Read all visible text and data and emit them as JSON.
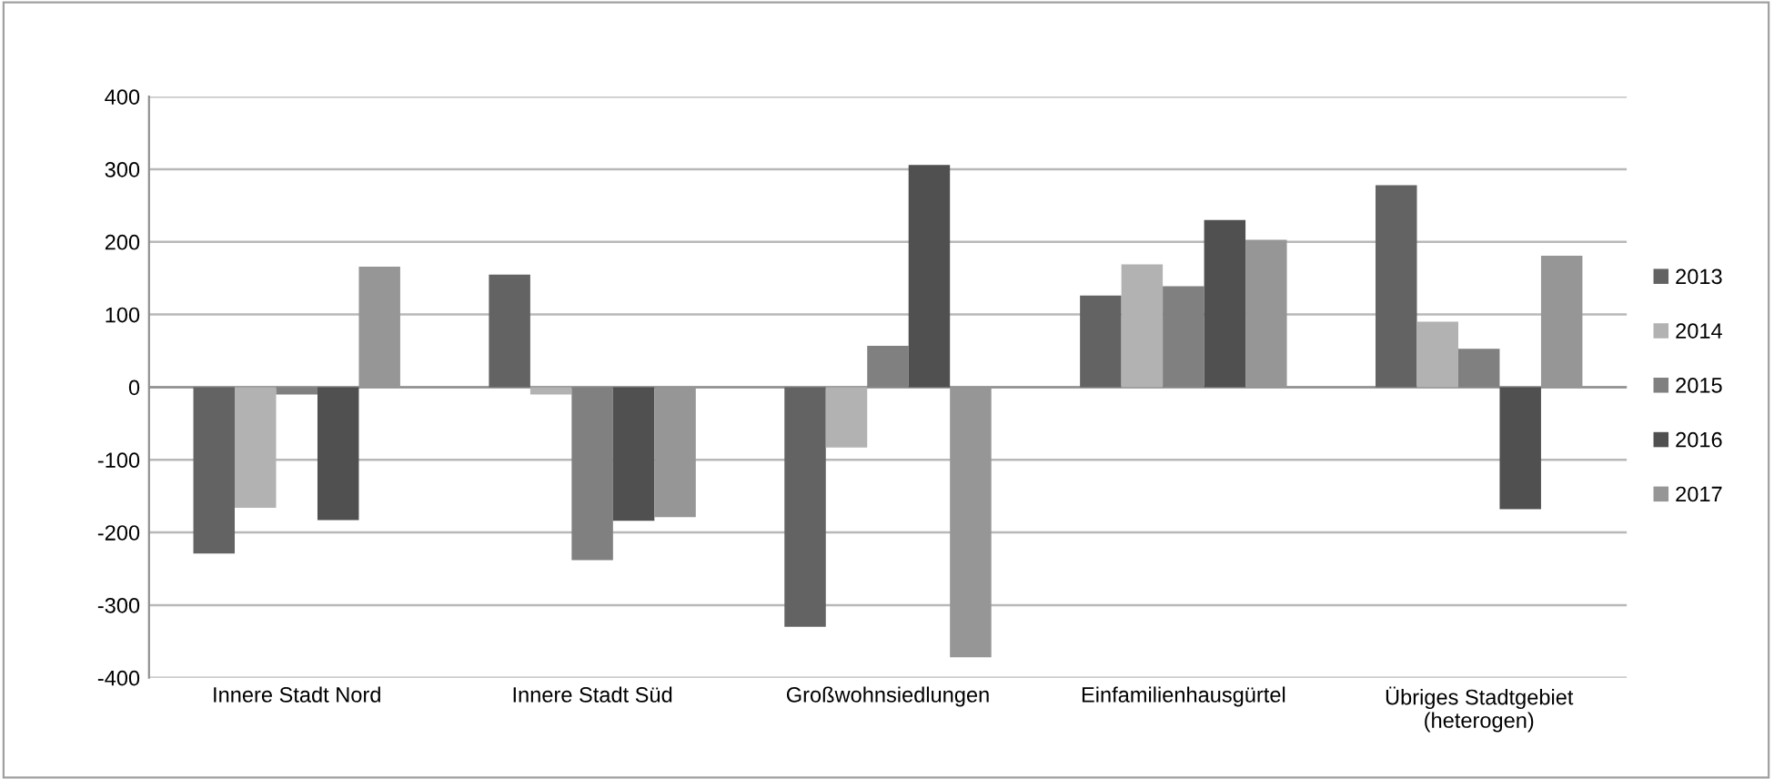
{
  "chart_data": {
    "type": "bar",
    "categories": [
      "Innere Stadt Nord",
      "Innere Stadt Süd",
      "Großwohnsiedlungen",
      "Einfamilienhausgürtel",
      "Übriges Stadtgebiet\n(heterogen)"
    ],
    "series": [
      {
        "name": "2013",
        "color": "#636363",
        "values": [
          -229,
          155,
          -330,
          126,
          278
        ]
      },
      {
        "name": "2014",
        "color": "#b2b2b2",
        "values": [
          -166,
          -10,
          -83,
          169,
          90
        ]
      },
      {
        "name": "2015",
        "color": "#808080",
        "values": [
          -10,
          -238,
          57,
          139,
          53
        ]
      },
      {
        "name": "2016",
        "color": "#505050",
        "values": [
          -183,
          -184,
          306,
          230,
          -168
        ]
      },
      {
        "name": "2017",
        "color": "#969696",
        "values": [
          166,
          -179,
          -372,
          203,
          181
        ]
      }
    ],
    "ylim": [
      -400,
      400
    ],
    "yticks": [
      -400,
      -300,
      -200,
      -100,
      0,
      100,
      200,
      300,
      400
    ],
    "grid": "y",
    "legend": "right"
  }
}
